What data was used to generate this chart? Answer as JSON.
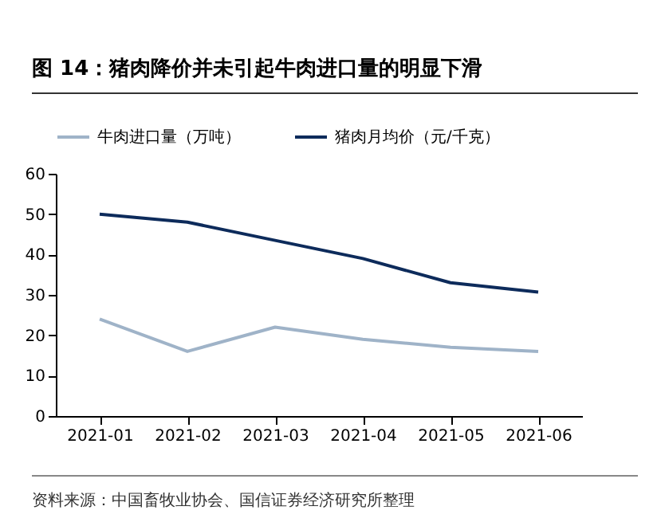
{
  "chart_data": {
    "type": "line",
    "title": "图 14：猪肉降价并未引起牛肉进口量的明显下滑",
    "categories": [
      "2021-01",
      "2021-02",
      "2021-03",
      "2021-04",
      "2021-05",
      "2021-06"
    ],
    "series": [
      {
        "name": "牛肉进口量（万吨）",
        "color": "#9fb3c8",
        "values": [
          24,
          16,
          22,
          19,
          17,
          16
        ]
      },
      {
        "name": "猪肉月均价（元/千克）",
        "color": "#0d2b5b",
        "values": [
          50,
          48,
          43.5,
          39,
          33,
          30.7
        ]
      }
    ],
    "ylim": [
      0,
      60
    ],
    "yticks": [
      0,
      10,
      20,
      30,
      40,
      50,
      60
    ],
    "grid": false,
    "legend": "top",
    "marker": "none",
    "line_style": "solid",
    "annotations": [
      "资料来源：中国畜牧业协会、国信证券经济研究所整理"
    ]
  }
}
